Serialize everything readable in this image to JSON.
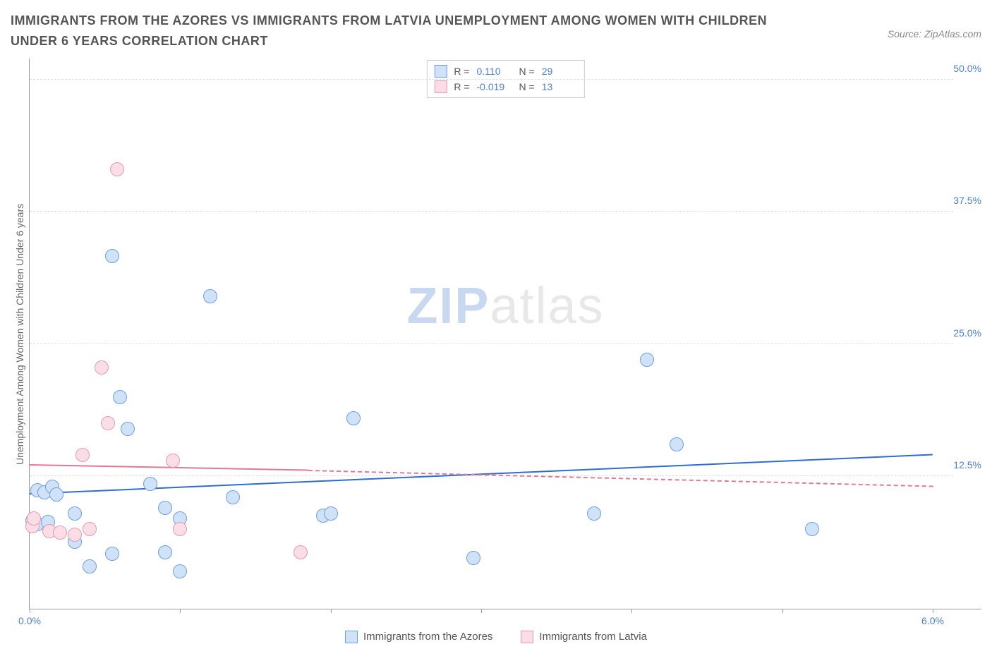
{
  "title": "IMMIGRANTS FROM THE AZORES VS IMMIGRANTS FROM LATVIA UNEMPLOYMENT AMONG WOMEN WITH CHILDREN UNDER 6 YEARS CORRELATION CHART",
  "source_prefix": "Source: ",
  "source_name": "ZipAtlas.com",
  "ylabel": "Unemployment Among Women with Children Under 6 years",
  "watermark_a": "ZIP",
  "watermark_b": "atlas",
  "chart": {
    "type": "scatter",
    "xlim": [
      0.0,
      6.0
    ],
    "ylim": [
      0.0,
      52.0
    ],
    "xticks": [
      0.0,
      1.0,
      2.0,
      3.0,
      4.0,
      5.0,
      6.0
    ],
    "xtick_labels": [
      "0.0%",
      "",
      "",
      "",
      "",
      "",
      "6.0%"
    ],
    "yticks": [
      12.5,
      25.0,
      37.5,
      50.0
    ],
    "ytick_labels": [
      "12.5%",
      "25.0%",
      "37.5%",
      "50.0%"
    ],
    "grid_color": "#dddddd",
    "background_color": "#ffffff",
    "axis_color": "#999999",
    "tick_label_color": "#4a7fd8",
    "point_radius": 9,
    "point_stroke_width": 1
  },
  "series": [
    {
      "name": "Immigrants from the Azores",
      "fill": "#cfe2f8",
      "stroke": "#6fa0e0",
      "r_label": "R =",
      "r_value": "0.110",
      "n_label": "N =",
      "n_value": "29",
      "trend": {
        "x1": 0.0,
        "y1": 10.8,
        "x2": 6.0,
        "y2": 14.5,
        "color": "#2e6cd6",
        "dashed": false
      },
      "points": [
        {
          "x": 0.02,
          "y": 8.3
        },
        {
          "x": 0.05,
          "y": 8.0
        },
        {
          "x": 0.05,
          "y": 11.2
        },
        {
          "x": 0.1,
          "y": 11.0
        },
        {
          "x": 0.12,
          "y": 8.2
        },
        {
          "x": 0.15,
          "y": 11.5
        },
        {
          "x": 0.18,
          "y": 10.8
        },
        {
          "x": 0.3,
          "y": 6.3
        },
        {
          "x": 0.3,
          "y": 9.0
        },
        {
          "x": 0.4,
          "y": 4.0
        },
        {
          "x": 0.55,
          "y": 5.2
        },
        {
          "x": 0.55,
          "y": 33.3
        },
        {
          "x": 0.6,
          "y": 20.0
        },
        {
          "x": 0.65,
          "y": 17.0
        },
        {
          "x": 0.8,
          "y": 11.8
        },
        {
          "x": 0.9,
          "y": 5.3
        },
        {
          "x": 0.9,
          "y": 9.5
        },
        {
          "x": 1.0,
          "y": 3.5
        },
        {
          "x": 1.0,
          "y": 8.5
        },
        {
          "x": 1.2,
          "y": 29.5
        },
        {
          "x": 1.35,
          "y": 10.5
        },
        {
          "x": 1.95,
          "y": 8.8
        },
        {
          "x": 2.0,
          "y": 9.0
        },
        {
          "x": 2.15,
          "y": 18.0
        },
        {
          "x": 2.95,
          "y": 4.8
        },
        {
          "x": 3.75,
          "y": 9.0
        },
        {
          "x": 4.1,
          "y": 23.5
        },
        {
          "x": 4.3,
          "y": 15.5
        },
        {
          "x": 5.2,
          "y": 7.5
        }
      ]
    },
    {
      "name": "Immigrants from Latvia",
      "fill": "#fbdde5",
      "stroke": "#e49bb0",
      "r_label": "R =",
      "r_value": "-0.019",
      "n_label": "N =",
      "n_value": "13",
      "trend": {
        "x1": 0.0,
        "y1": 13.5,
        "x2": 1.85,
        "y2": 13.0,
        "x2_dash": 6.0,
        "y2_dash": 11.5,
        "color": "#e07a94",
        "dashed_after": true
      },
      "points": [
        {
          "x": 0.02,
          "y": 7.8
        },
        {
          "x": 0.03,
          "y": 8.5
        },
        {
          "x": 0.13,
          "y": 7.3
        },
        {
          "x": 0.2,
          "y": 7.2
        },
        {
          "x": 0.3,
          "y": 7.0
        },
        {
          "x": 0.35,
          "y": 14.5
        },
        {
          "x": 0.4,
          "y": 7.5
        },
        {
          "x": 0.48,
          "y": 22.8
        },
        {
          "x": 0.52,
          "y": 17.5
        },
        {
          "x": 0.58,
          "y": 41.5
        },
        {
          "x": 0.95,
          "y": 14.0
        },
        {
          "x": 1.0,
          "y": 7.5
        },
        {
          "x": 1.8,
          "y": 5.3
        }
      ]
    }
  ]
}
